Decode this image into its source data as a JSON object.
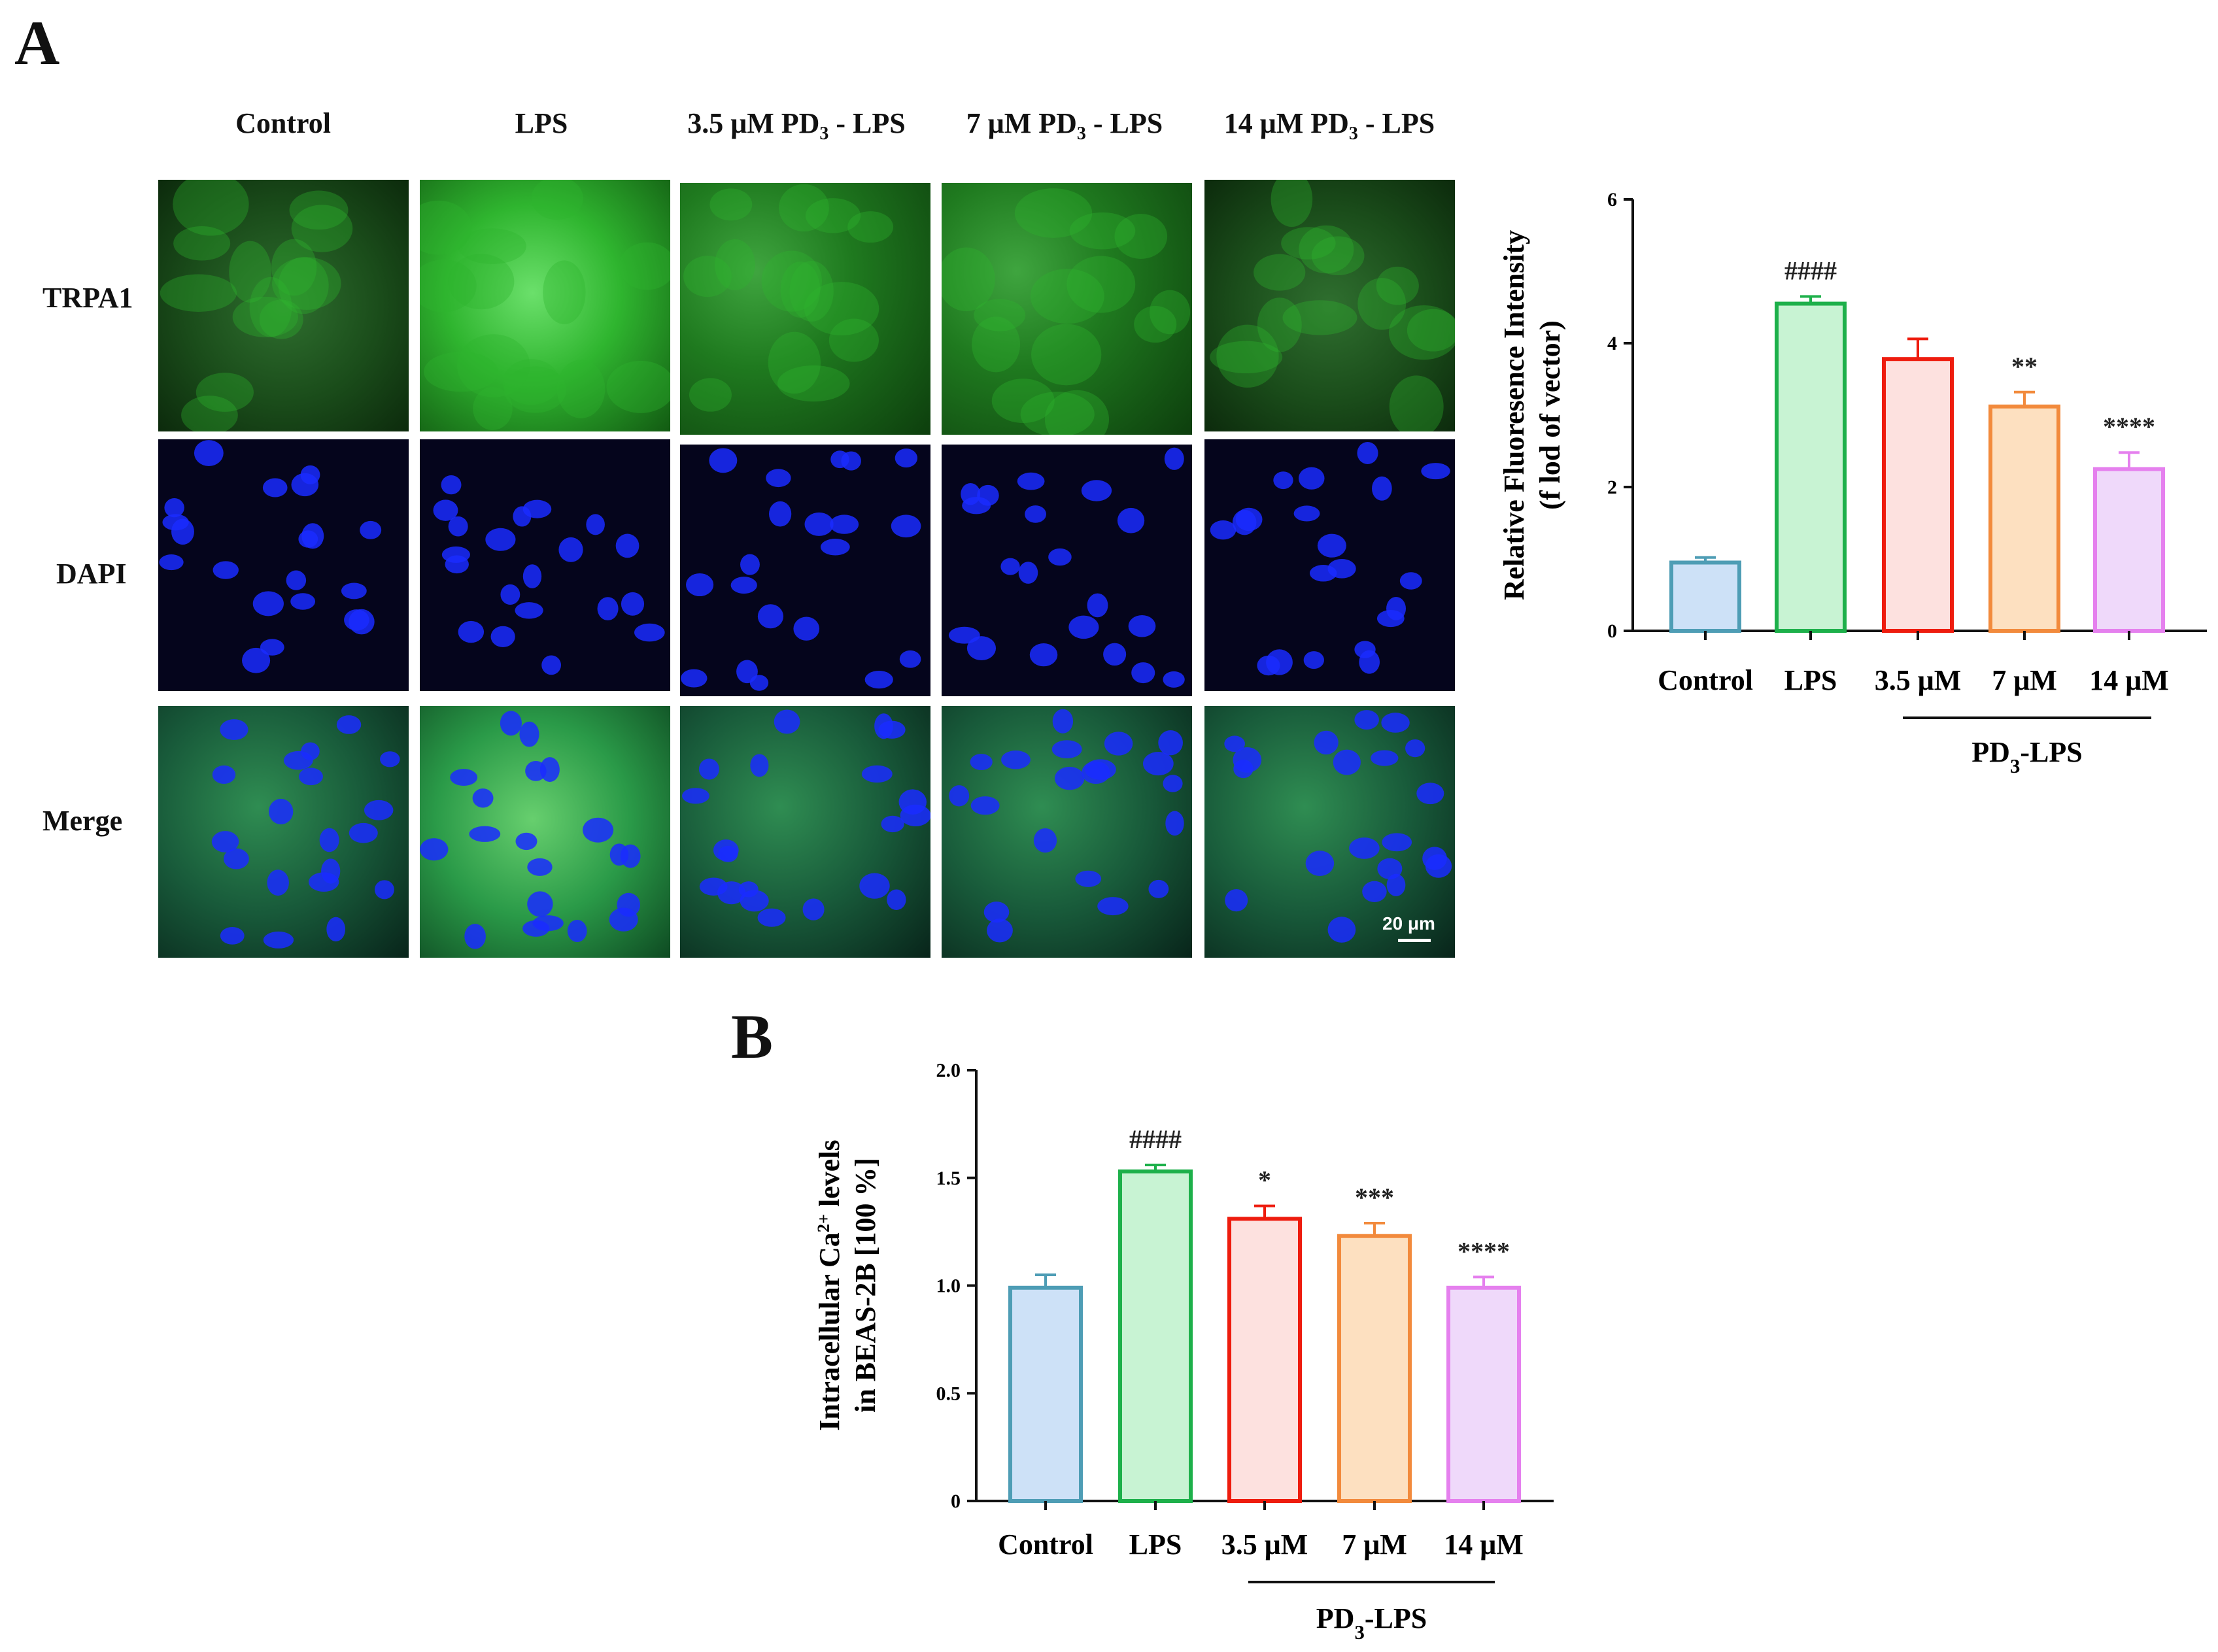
{
  "panel_a": {
    "letter": "A",
    "columns": [
      "Control",
      "LPS",
      "3.5 μM PD",
      "7 μM PD",
      "14 μM PD"
    ],
    "column_suffix": " - LPS",
    "subscript": "3",
    "rows": [
      "TRPA1",
      "DAPI",
      "Merge"
    ],
    "scale_bar_label": "20 μm",
    "colors": {
      "trpa1": "#2fb52f",
      "dapi": "#1a2cff",
      "merge": "#2a9a7a"
    }
  },
  "panel_b": {
    "letter": "B"
  },
  "chart_data": [
    {
      "type": "bar",
      "categories": [
        "Control",
        "LPS",
        "3.5 μM",
        "7 μM",
        "14 μM"
      ],
      "values": [
        0.95,
        4.55,
        3.78,
        3.12,
        2.25
      ],
      "errors": [
        0.07,
        0.1,
        0.28,
        0.2,
        0.23
      ],
      "annotations": [
        "",
        "####",
        "",
        "**",
        "****"
      ],
      "ylabel_line1": "Relative Fluoresence Intensity",
      "ylabel_line2": "(f lod of vector)",
      "ylim": [
        0,
        6
      ],
      "yticks": [
        0,
        2,
        4,
        6
      ],
      "group_label": "PD",
      "group_label_sub": "3",
      "group_label_suffix": "-LPS",
      "bar_fill_colors": [
        "#cde1f7",
        "#c8f3d3",
        "#fde1df",
        "#fde0c0",
        "#efd9fa"
      ],
      "bar_edge_colors": [
        "#4e9db5",
        "#1db04a",
        "#ee1c0e",
        "#f28a3c",
        "#e580ee"
      ]
    },
    {
      "type": "bar",
      "categories": [
        "Control",
        "LPS",
        "3.5 μM",
        "7 μM",
        "14 μM"
      ],
      "values": [
        0.99,
        1.53,
        1.31,
        1.23,
        0.99
      ],
      "errors": [
        0.06,
        0.03,
        0.06,
        0.06,
        0.05
      ],
      "annotations": [
        "",
        "####",
        "*",
        "***",
        "****"
      ],
      "ylabel_line1": "Intracellular Ca",
      "ylabel_sup": "2+",
      "ylabel_line1_suffix": " levels",
      "ylabel_line2": "in BEAS-2B [100 %]",
      "ylim": [
        0,
        2.0
      ],
      "yticks": [
        "0",
        "0.5",
        "1.0",
        "1.5",
        "2.0"
      ],
      "group_label": "PD",
      "group_label_sub": "3",
      "group_label_suffix": "-LPS",
      "bar_fill_colors": [
        "#cde1f7",
        "#c8f3d3",
        "#fde1df",
        "#fde0c0",
        "#efd9fa"
      ],
      "bar_edge_colors": [
        "#4e9db5",
        "#1db04a",
        "#ee1c0e",
        "#f28a3c",
        "#e580ee"
      ]
    }
  ]
}
